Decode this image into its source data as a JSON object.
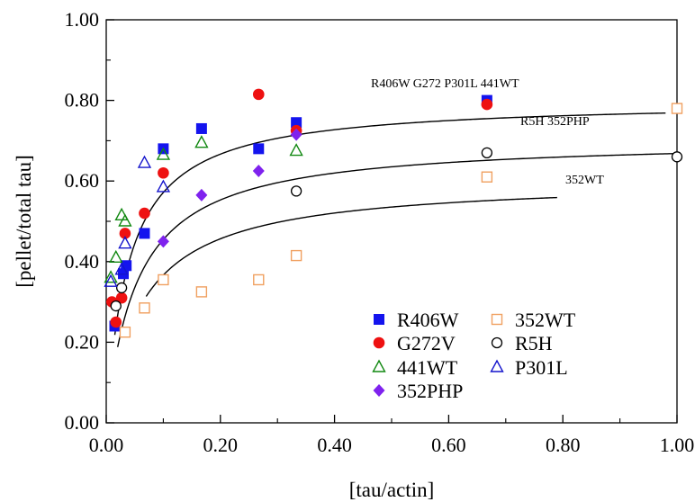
{
  "chart_data": {
    "type": "scatter",
    "xlabel": "[tau/actin]",
    "ylabel": "[pellet/total tau]",
    "xlim": [
      0,
      1
    ],
    "ylim": [
      0,
      1
    ],
    "x_ticks": [
      "0.00",
      "0.20",
      "0.40",
      "0.60",
      "0.80",
      "1.00"
    ],
    "y_ticks": [
      "0.00",
      "0.20",
      "0.40",
      "0.60",
      "0.80",
      "1.00"
    ],
    "grid": false,
    "legend_position": "bottom-center",
    "series": [
      {
        "name": "R406W",
        "marker": "square-filled",
        "color": "#1414ee",
        "points": [
          [
            0.015,
            0.24
          ],
          [
            0.03,
            0.37
          ],
          [
            0.035,
            0.39
          ],
          [
            0.067,
            0.47
          ],
          [
            0.1,
            0.68
          ],
          [
            0.167,
            0.73
          ],
          [
            0.267,
            0.68
          ],
          [
            0.333,
            0.745
          ],
          [
            0.667,
            0.8
          ]
        ]
      },
      {
        "name": "G272V",
        "marker": "circle-filled",
        "color": "#ee1111",
        "points": [
          [
            0.01,
            0.3
          ],
          [
            0.017,
            0.25
          ],
          [
            0.027,
            0.31
          ],
          [
            0.033,
            0.47
          ],
          [
            0.067,
            0.52
          ],
          [
            0.1,
            0.62
          ],
          [
            0.267,
            0.815
          ],
          [
            0.333,
            0.725
          ],
          [
            0.667,
            0.79
          ]
        ]
      },
      {
        "name": "441WT",
        "marker": "triangle-open",
        "color": "#118811",
        "points": [
          [
            0.008,
            0.36
          ],
          [
            0.017,
            0.41
          ],
          [
            0.027,
            0.515
          ],
          [
            0.033,
            0.5
          ],
          [
            0.1,
            0.665
          ],
          [
            0.167,
            0.695
          ],
          [
            0.333,
            0.675
          ]
        ]
      },
      {
        "name": "352PHP",
        "marker": "diamond-filled",
        "color": "#7f22ee",
        "points": [
          [
            0.1,
            0.45
          ],
          [
            0.167,
            0.565
          ],
          [
            0.267,
            0.625
          ],
          [
            0.333,
            0.715
          ]
        ]
      },
      {
        "name": "352WT",
        "marker": "square-open",
        "color": "#f0a060",
        "points": [
          [
            0.033,
            0.225
          ],
          [
            0.067,
            0.285
          ],
          [
            0.1,
            0.355
          ],
          [
            0.167,
            0.325
          ],
          [
            0.267,
            0.355
          ],
          [
            0.333,
            0.415
          ],
          [
            0.667,
            0.61
          ],
          [
            1.0,
            0.78
          ]
        ]
      },
      {
        "name": "R5H",
        "marker": "circle-open",
        "color": "#000000",
        "points": [
          [
            0.017,
            0.29
          ],
          [
            0.027,
            0.335
          ],
          [
            0.333,
            0.575
          ],
          [
            0.667,
            0.67
          ],
          [
            1.0,
            0.66
          ]
        ]
      },
      {
        "name": "P301L",
        "marker": "triangle-open",
        "color": "#1414cc",
        "points": [
          [
            0.008,
            0.35
          ],
          [
            0.027,
            0.38
          ],
          [
            0.033,
            0.445
          ],
          [
            0.067,
            0.645
          ],
          [
            0.1,
            0.585
          ]
        ]
      }
    ],
    "fit_curves": [
      {
        "label": "R406W G272 P301L 441WT",
        "vmax": 0.8,
        "kd": 0.04,
        "x_start": 0.015,
        "x_end": 0.98
      },
      {
        "label": "R5H 352PHP",
        "vmax": 0.705,
        "kd": 0.055,
        "x_start": 0.02,
        "x_end": 0.995
      },
      {
        "label": "352WT",
        "vmax": 0.605,
        "kd": 0.065,
        "x_start": 0.07,
        "x_end": 0.79
      }
    ]
  }
}
